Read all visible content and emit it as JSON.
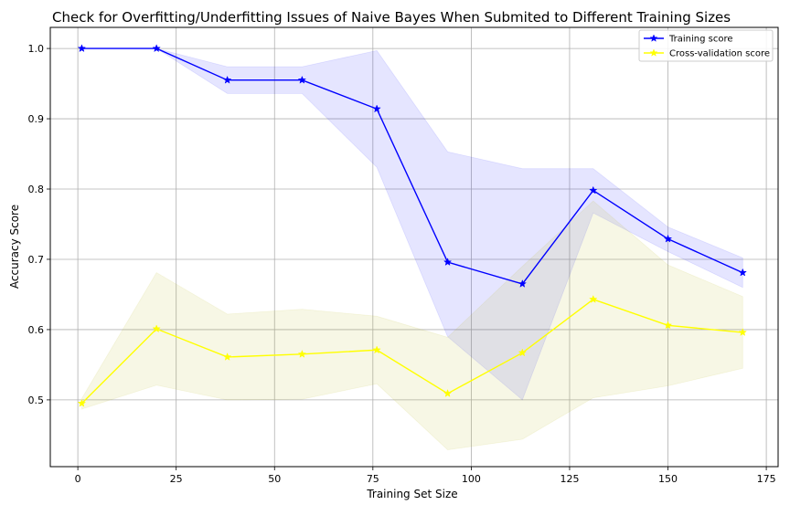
{
  "chart_data": {
    "type": "line",
    "title": "Check for Overfitting/Underfitting Issues of Naive Bayes When Submited to Different Training Sizes",
    "xlabel": "Training Set Size",
    "ylabel": "Accuracy Score",
    "xlim": [
      -7,
      178
    ],
    "ylim": [
      0.405,
      1.03
    ],
    "xticks": [
      0,
      25,
      50,
      75,
      100,
      125,
      150,
      175
    ],
    "xtick_labels": [
      "0",
      "25",
      "50",
      "75",
      "100",
      "125",
      "150",
      "175"
    ],
    "yticks": [
      0.5,
      0.6,
      0.7,
      0.8,
      0.9,
      1.0
    ],
    "ytick_labels": [
      "0.5",
      "0.6",
      "0.7",
      "0.8",
      "0.9",
      "1.0"
    ],
    "grid": true,
    "legend_position": "top-right",
    "x": [
      1,
      20,
      38,
      57,
      76,
      94,
      113,
      131,
      150,
      169
    ],
    "series": [
      {
        "name": "Training score",
        "color": "#0000ff",
        "band_color": "#0000ff",
        "band_opacity": 0.1,
        "marker": "star",
        "values": [
          1.0,
          1.0,
          0.955,
          0.955,
          0.914,
          0.696,
          0.665,
          0.798,
          0.729,
          0.681
        ],
        "lower": [
          1.0,
          1.0,
          0.936,
          0.936,
          0.831,
          0.59,
          0.5,
          0.766,
          0.711,
          0.66
        ],
        "upper": [
          1.0,
          1.0,
          0.974,
          0.974,
          0.997,
          0.853,
          0.829,
          0.829,
          0.746,
          0.702
        ]
      },
      {
        "name": "Cross-validation score",
        "color": "#ffff00",
        "band_color": "#bdbd2a",
        "band_opacity": 0.12,
        "marker": "star",
        "values": [
          0.495,
          0.601,
          0.561,
          0.565,
          0.571,
          0.509,
          0.567,
          0.643,
          0.606,
          0.596
        ],
        "lower": [
          0.487,
          0.521,
          0.5,
          0.501,
          0.523,
          0.429,
          0.444,
          0.503,
          0.52,
          0.545
        ],
        "upper": [
          0.502,
          0.681,
          0.622,
          0.629,
          0.619,
          0.589,
          0.69,
          0.783,
          0.692,
          0.647
        ]
      }
    ]
  }
}
